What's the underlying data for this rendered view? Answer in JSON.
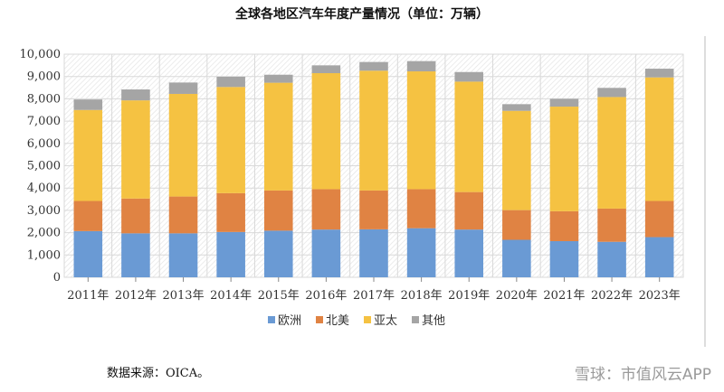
{
  "chart_data": {
    "type": "bar",
    "stacked": true,
    "title": "全球各地区汽车年度产量情况（单位：万辆）",
    "categories": [
      "2011年",
      "2012年",
      "2013年",
      "2014年",
      "2015年",
      "2016年",
      "2017年",
      "2018年",
      "2019年",
      "2020年",
      "2021年",
      "2022年",
      "2023年"
    ],
    "series": [
      {
        "name": "欧洲",
        "color": "#6a9ad4",
        "values": [
          2070,
          1970,
          1970,
          2030,
          2090,
          2140,
          2150,
          2200,
          2140,
          1680,
          1620,
          1590,
          1800
        ]
      },
      {
        "name": "北美",
        "color": "#e08343",
        "values": [
          1350,
          1560,
          1650,
          1740,
          1800,
          1810,
          1740,
          1750,
          1680,
          1330,
          1340,
          1490,
          1620
        ]
      },
      {
        "name": "亚太",
        "color": "#f5c242",
        "values": [
          4080,
          4400,
          4600,
          4760,
          4830,
          5200,
          5370,
          5280,
          4950,
          4450,
          4690,
          5000,
          5540
        ]
      },
      {
        "name": "其他",
        "color": "#a5a5a5",
        "values": [
          470,
          490,
          510,
          460,
          360,
          350,
          390,
          460,
          430,
          300,
          350,
          410,
          390
        ]
      }
    ],
    "ylim": [
      0,
      10000
    ],
    "yticks": [
      "0",
      "1,000",
      "2,000",
      "3,000",
      "4,000",
      "5,000",
      "6,000",
      "7,000",
      "8,000",
      "9,000",
      "10,000"
    ],
    "grid": true,
    "legend": "bottom"
  },
  "note": "数据来源：OICA。",
  "watermark": "雪球：市值风云APP"
}
